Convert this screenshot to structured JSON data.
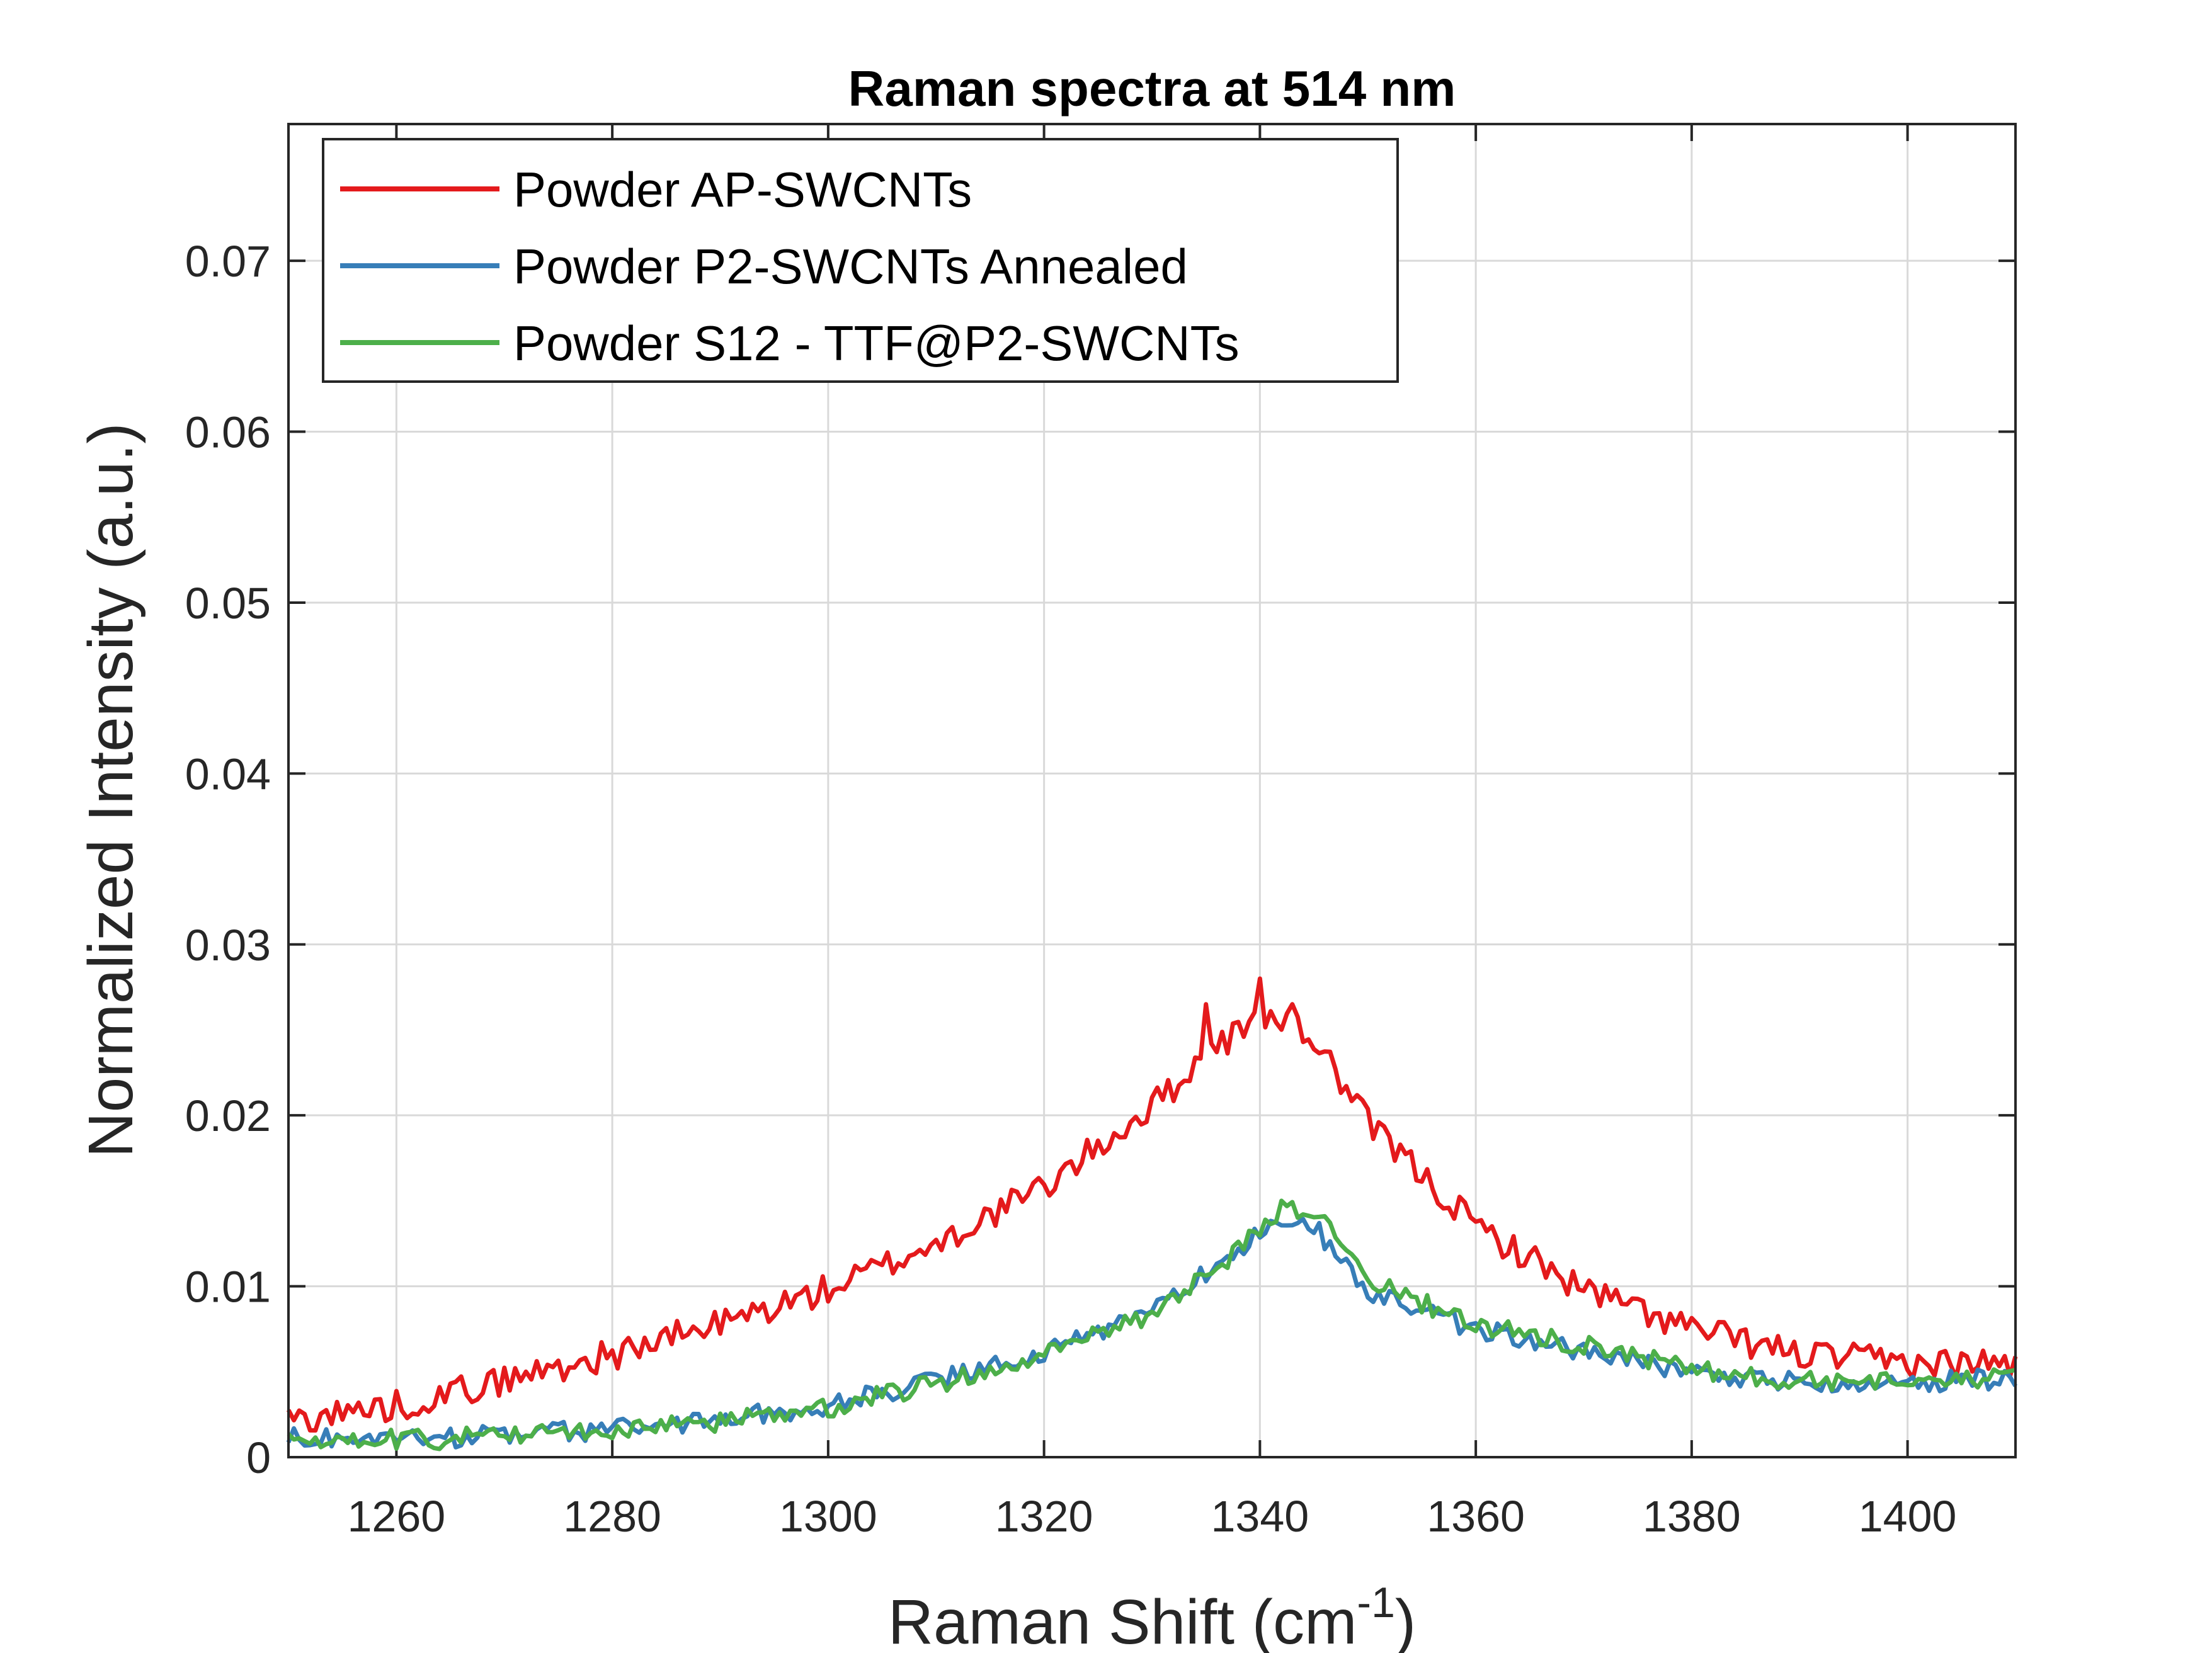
{
  "chart_data": {
    "type": "line",
    "title": "Raman spectra at 514 nm",
    "xlabel_main": "Raman Shift (cm",
    "xlabel_sup": "-1",
    "xlabel_close": ")",
    "ylabel": "Normalized Intensity (a.u.)",
    "xlim": [
      1250,
      1410
    ],
    "ylim": [
      0,
      0.078
    ],
    "xticks": [
      1260,
      1280,
      1300,
      1320,
      1340,
      1360,
      1380,
      1400
    ],
    "yticks": [
      0,
      0.01,
      0.02,
      0.03,
      0.04,
      0.05,
      0.06,
      0.07
    ],
    "xtick_labels": [
      "1260",
      "1280",
      "1300",
      "1320",
      "1340",
      "1360",
      "1380",
      "1400"
    ],
    "ytick_labels": [
      "0",
      "0.01",
      "0.02",
      "0.03",
      "0.04",
      "0.05",
      "0.06",
      "0.07"
    ],
    "grid": true,
    "legend_position": "top-left",
    "series": [
      {
        "name": "Powder AP-SWCNTs",
        "color": "#e41a1c",
        "anchors": [
          [
            1250,
            0.0022
          ],
          [
            1260,
            0.003
          ],
          [
            1270,
            0.0045
          ],
          [
            1280,
            0.006
          ],
          [
            1290,
            0.0078
          ],
          [
            1300,
            0.0098
          ],
          [
            1310,
            0.0125
          ],
          [
            1320,
            0.0158
          ],
          [
            1330,
            0.0205
          ],
          [
            1335,
            0.0235
          ],
          [
            1340,
            0.0258
          ],
          [
            1345,
            0.0245
          ],
          [
            1350,
            0.0195
          ],
          [
            1355,
            0.0165
          ],
          [
            1360,
            0.0135
          ],
          [
            1370,
            0.0098
          ],
          [
            1380,
            0.0075
          ],
          [
            1390,
            0.006
          ],
          [
            1400,
            0.0055
          ],
          [
            1410,
            0.0055
          ]
        ],
        "noise": 0.0009,
        "spikes": [
          [
            1340,
            0.028
          ],
          [
            1335,
            0.0265
          ],
          [
            1343,
            0.0265
          ]
        ]
      },
      {
        "name": "Powder P2-SWCNTs Annealed",
        "color": "#377eb8",
        "anchors": [
          [
            1250,
            0.0012
          ],
          [
            1260,
            0.001
          ],
          [
            1270,
            0.0013
          ],
          [
            1280,
            0.0016
          ],
          [
            1290,
            0.0022
          ],
          [
            1300,
            0.003
          ],
          [
            1310,
            0.0045
          ],
          [
            1320,
            0.0062
          ],
          [
            1330,
            0.0085
          ],
          [
            1335,
            0.0108
          ],
          [
            1340,
            0.0132
          ],
          [
            1345,
            0.0135
          ],
          [
            1350,
            0.0098
          ],
          [
            1355,
            0.0085
          ],
          [
            1360,
            0.0075
          ],
          [
            1370,
            0.0062
          ],
          [
            1380,
            0.005
          ],
          [
            1390,
            0.0044
          ],
          [
            1400,
            0.0044
          ],
          [
            1410,
            0.0046
          ]
        ],
        "noise": 0.0006,
        "spikes": []
      },
      {
        "name": "Powder S12 - TTF@P2-SWCNTs",
        "color": "#4daf4a",
        "anchors": [
          [
            1250,
            0.0012
          ],
          [
            1260,
            0.001
          ],
          [
            1270,
            0.0012
          ],
          [
            1280,
            0.0015
          ],
          [
            1290,
            0.0021
          ],
          [
            1300,
            0.0029
          ],
          [
            1310,
            0.0043
          ],
          [
            1320,
            0.006
          ],
          [
            1330,
            0.0083
          ],
          [
            1335,
            0.0106
          ],
          [
            1340,
            0.0132
          ],
          [
            1343,
            0.0145
          ],
          [
            1346,
            0.0135
          ],
          [
            1350,
            0.0105
          ],
          [
            1355,
            0.009
          ],
          [
            1360,
            0.0078
          ],
          [
            1370,
            0.0065
          ],
          [
            1380,
            0.0052
          ],
          [
            1390,
            0.0044
          ],
          [
            1400,
            0.0044
          ],
          [
            1410,
            0.0047
          ]
        ],
        "noise": 0.0006,
        "spikes": [
          [
            1342,
            0.015
          ]
        ]
      }
    ]
  }
}
